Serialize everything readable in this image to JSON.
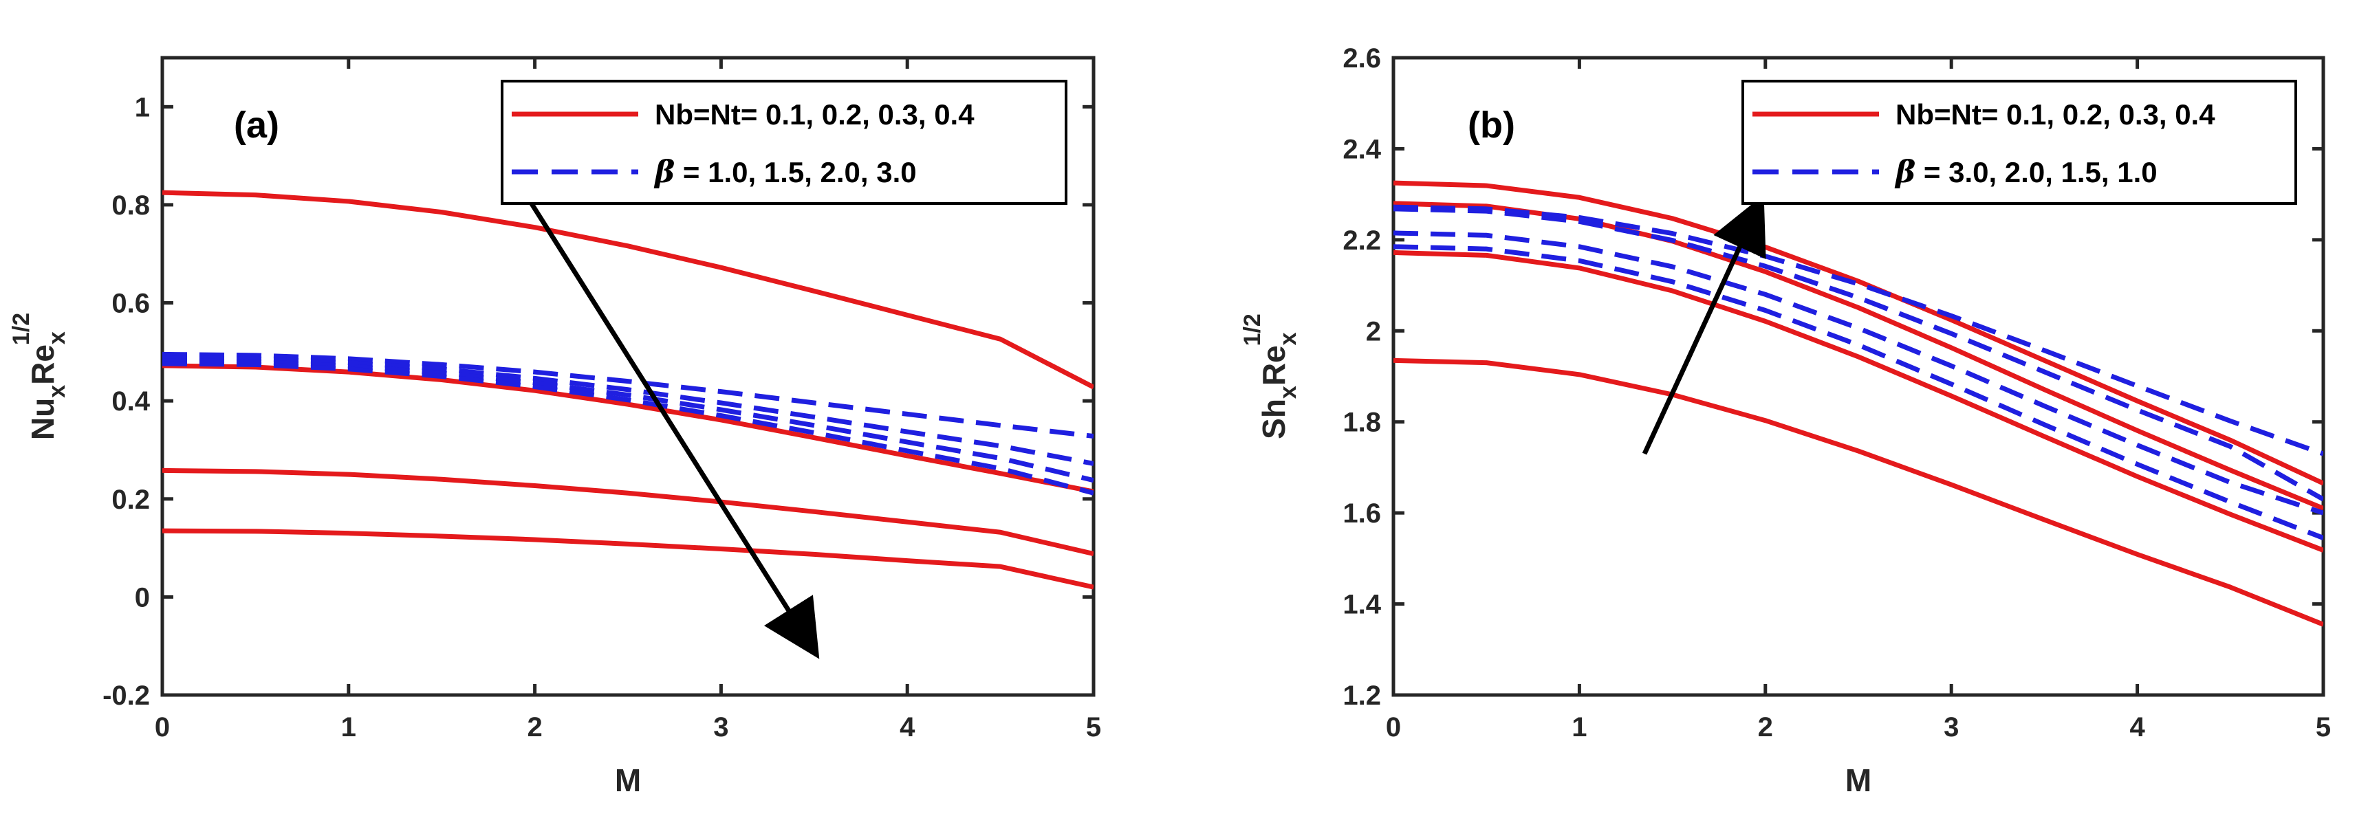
{
  "chart_data": [
    {
      "type": "line",
      "panel": "(a)",
      "xlabel": "M",
      "ylabel": {
        "main": "Nu",
        "sub": "x",
        "main2": "Re",
        "sub2": "x",
        "sup": "1/2"
      },
      "xlim": [
        0,
        5
      ],
      "ylim": [
        -0.2,
        1.1
      ],
      "xticks": [
        0,
        1,
        2,
        3,
        4,
        5
      ],
      "xtick_labels": [
        "0",
        "1",
        "2",
        "3",
        "4",
        "5"
      ],
      "yticks": [
        -0.2,
        0,
        0.2,
        0.4,
        0.6,
        0.8,
        1
      ],
      "ytick_labels": [
        "-0.2",
        "0",
        "0.2",
        "0.4",
        "0.6",
        "0.8",
        "1"
      ],
      "x": [
        0,
        0.5,
        1,
        1.5,
        2,
        2.5,
        3,
        3.5,
        4,
        4.5,
        5
      ],
      "legend": {
        "placement": "top-right",
        "entries": [
          {
            "label": "Nb=Nt= 0.1, 0.2, 0.3, 0.4",
            "style": "solid",
            "color": "#e41a1c"
          },
          {
            "symbol": "β",
            "label": " = 1.0, 1.5, 2.0, 3.0",
            "style": "dashed",
            "color": "#1f1fe0"
          }
        ]
      },
      "series": [
        {
          "name": "Nb=Nt=0.1",
          "style": "solid",
          "color": "#e41a1c",
          "values": [
            0.825,
            0.82,
            0.807,
            0.785,
            0.754,
            0.716,
            0.672,
            0.624,
            0.575,
            0.526,
            0.428
          ]
        },
        {
          "name": "Nb=Nt=0.2",
          "style": "solid",
          "color": "#e41a1c",
          "values": [
            0.472,
            0.469,
            0.459,
            0.443,
            0.421,
            0.393,
            0.361,
            0.325,
            0.288,
            0.252,
            0.215
          ]
        },
        {
          "name": "Nb=Nt=0.3",
          "style": "solid",
          "color": "#e41a1c",
          "values": [
            0.258,
            0.256,
            0.25,
            0.24,
            0.227,
            0.212,
            0.194,
            0.174,
            0.153,
            0.132,
            0.088
          ]
        },
        {
          "name": "Nb=Nt=0.4",
          "style": "solid",
          "color": "#e41a1c",
          "values": [
            0.135,
            0.134,
            0.13,
            0.124,
            0.117,
            0.108,
            0.098,
            0.087,
            0.074,
            0.062,
            0.02
          ]
        },
        {
          "name": "β=1.0",
          "style": "dashed",
          "color": "#1f1fe0",
          "values": [
            0.495,
            0.493,
            0.486,
            0.474,
            0.459,
            0.44,
            0.419,
            0.396,
            0.373,
            0.35,
            0.328
          ]
        },
        {
          "name": "β=1.5",
          "style": "dashed",
          "color": "#1f1fe0",
          "values": [
            0.488,
            0.486,
            0.478,
            0.465,
            0.446,
            0.423,
            0.396,
            0.367,
            0.337,
            0.308,
            0.272
          ]
        },
        {
          "name": "β=2.0",
          "style": "dashed",
          "color": "#1f1fe0",
          "values": [
            0.482,
            0.48,
            0.471,
            0.457,
            0.437,
            0.412,
            0.382,
            0.35,
            0.316,
            0.283,
            0.238
          ]
        },
        {
          "name": "β=3.0",
          "style": "dashed",
          "color": "#1f1fe0",
          "values": [
            0.476,
            0.474,
            0.465,
            0.45,
            0.429,
            0.402,
            0.37,
            0.335,
            0.298,
            0.262,
            0.212
          ]
        }
      ],
      "arrow": {
        "from": [
          1.92,
          0.84
        ],
        "to": [
          3.5,
          -0.11
        ]
      }
    },
    {
      "type": "line",
      "panel": "(b)",
      "xlabel": "M",
      "ylabel": {
        "main": "Sh",
        "sub": "x",
        "main2": "Re",
        "sub2": "x",
        "sup": "1/2"
      },
      "xlim": [
        0,
        5
      ],
      "ylim": [
        1.2,
        2.6
      ],
      "xticks": [
        0,
        1,
        2,
        3,
        4,
        5
      ],
      "xtick_labels": [
        "0",
        "1",
        "2",
        "3",
        "4",
        "5"
      ],
      "yticks": [
        1.2,
        1.4,
        1.6,
        1.8,
        2,
        2.2,
        2.4,
        2.6
      ],
      "ytick_labels": [
        "1.2",
        "1.4",
        "1.6",
        "1.8",
        "2",
        "2.2",
        "2.4",
        "2.6"
      ],
      "x": [
        0,
        0.5,
        1,
        1.5,
        2,
        2.5,
        3,
        3.5,
        4,
        4.5,
        5
      ],
      "legend": {
        "placement": "top-right",
        "entries": [
          {
            "label": "Nb=Nt= 0.1, 0.2, 0.3, 0.4",
            "style": "solid",
            "color": "#e41a1c"
          },
          {
            "symbol": "β",
            "label": " = 3.0, 2.0, 1.5, 1.0",
            "style": "dashed",
            "color": "#1f1fe0"
          }
        ]
      },
      "series": [
        {
          "name": "Nb=Nt=0.1",
          "style": "solid",
          "color": "#e41a1c",
          "values": [
            1.935,
            1.93,
            1.904,
            1.86,
            1.803,
            1.736,
            1.662,
            1.585,
            1.509,
            1.437,
            1.355
          ]
        },
        {
          "name": "Nb=Nt=0.2",
          "style": "solid",
          "color": "#e41a1c",
          "values": [
            2.172,
            2.166,
            2.138,
            2.088,
            2.021,
            1.943,
            1.857,
            1.768,
            1.68,
            1.597,
            1.518
          ]
        },
        {
          "name": "Nb=Nt=0.3",
          "style": "solid",
          "color": "#e41a1c",
          "values": [
            2.28,
            2.274,
            2.246,
            2.197,
            2.13,
            2.051,
            1.963,
            1.871,
            1.781,
            1.694,
            1.61
          ]
        },
        {
          "name": "Nb=Nt=0.4",
          "style": "solid",
          "color": "#e41a1c",
          "values": [
            2.325,
            2.319,
            2.293,
            2.247,
            2.184,
            2.109,
            2.024,
            1.935,
            1.846,
            1.76,
            1.665
          ]
        },
        {
          "name": "β=3.0",
          "style": "dashed",
          "color": "#1f1fe0",
          "values": [
            2.185,
            2.18,
            2.154,
            2.108,
            2.045,
            1.969,
            1.883,
            1.794,
            1.707,
            1.624,
            1.545
          ]
        },
        {
          "name": "β=2.0",
          "style": "dashed",
          "color": "#1f1fe0",
          "values": [
            2.215,
            2.21,
            2.185,
            2.141,
            2.08,
            2.006,
            1.923,
            1.835,
            1.749,
            1.667,
            1.6
          ]
        },
        {
          "name": "β=1.5",
          "style": "dashed",
          "color": "#1f1fe0",
          "values": [
            2.268,
            2.263,
            2.24,
            2.199,
            2.142,
            2.073,
            1.994,
            1.91,
            1.826,
            1.746,
            1.63
          ]
        },
        {
          "name": "β=1.0",
          "style": "dashed",
          "color": "#1f1fe0",
          "values": [
            2.272,
            2.268,
            2.249,
            2.214,
            2.164,
            2.103,
            2.033,
            1.957,
            1.879,
            1.802,
            1.73
          ]
        }
      ],
      "arrow": {
        "from": [
          1.35,
          1.73
        ],
        "to": [
          1.97,
          2.28
        ]
      }
    }
  ]
}
